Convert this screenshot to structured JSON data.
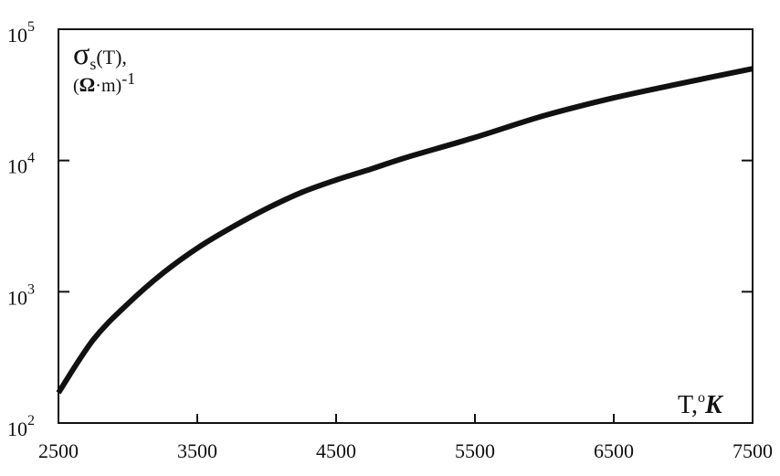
{
  "chart_data": {
    "type": "line",
    "title": "",
    "xlabel": "T, °K",
    "ylabel": "σs(T), (Ω·m)-1",
    "ylabel_parts": {
      "sigma": "σ",
      "sub": "s",
      "rest1": "(T),",
      "line2_open": "(",
      "omega": "Ω",
      "line2_rest": "·m)",
      "power": "-1"
    },
    "xlabel_parts": {
      "t": "T,",
      "deg": "o",
      "k": "K"
    },
    "xlim": [
      2500,
      7500
    ],
    "ylim": [
      100,
      100000
    ],
    "yscale": "log",
    "grid": false,
    "x_ticks": [
      2500,
      3500,
      4500,
      5500,
      6500,
      7500
    ],
    "x_tick_labels": [
      "2500",
      "3500",
      "4500",
      "5500",
      "6500",
      "7500"
    ],
    "y_ticks": [
      100,
      1000,
      10000,
      100000
    ],
    "y_tick_base": [
      "10",
      "10",
      "10",
      "10"
    ],
    "y_tick_exp": [
      "2",
      "3",
      "4",
      "5"
    ],
    "series": [
      {
        "color": "#111111",
        "x": [
          2500,
          2750,
          3000,
          3250,
          3500,
          3750,
          4000,
          4250,
          4500,
          4750,
          5000,
          5500,
          6000,
          6500,
          7000,
          7500
        ],
        "y": [
          170,
          430,
          810,
          1380,
          2150,
          3100,
          4300,
          5700,
          7100,
          8600,
          10500,
          15000,
          22000,
          30000,
          39000,
          50000
        ]
      }
    ]
  }
}
